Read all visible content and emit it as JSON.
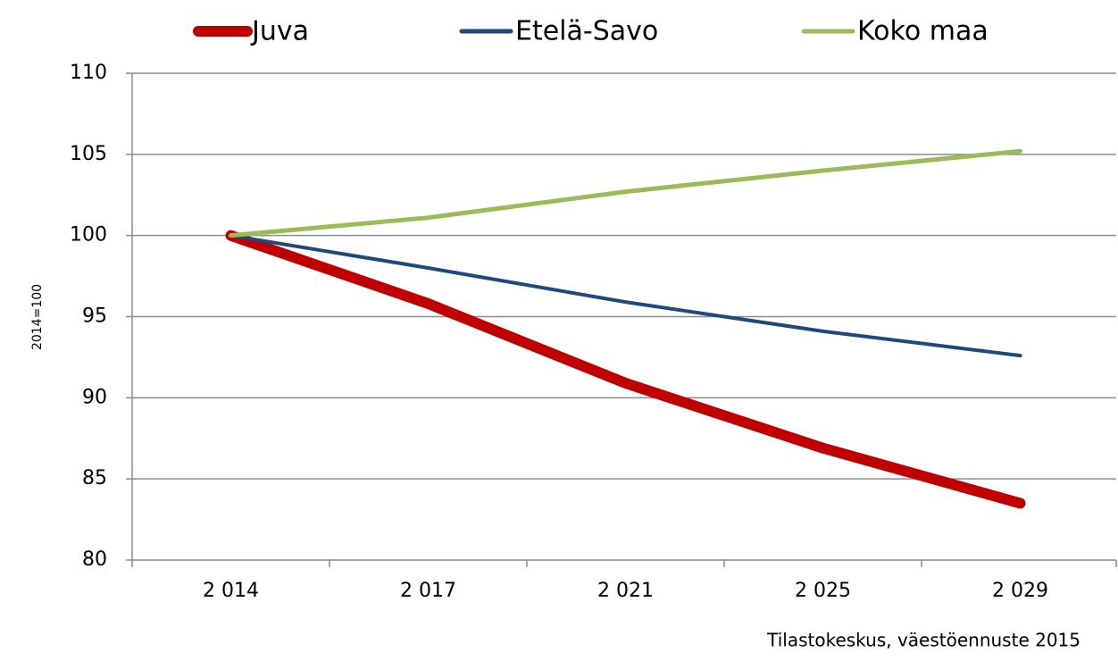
{
  "chart_data": {
    "type": "line",
    "categories": [
      "2 014",
      "2 017",
      "2 021",
      "2 025",
      "2 029"
    ],
    "series": [
      {
        "name": "Juva",
        "color": "#c00000",
        "values": [
          100,
          95.8,
          90.9,
          86.9,
          83.5
        ]
      },
      {
        "name": "Etelä-Savo",
        "color": "#1f497d",
        "values": [
          100,
          98,
          95.9,
          94.1,
          92.6
        ]
      },
      {
        "name": "Koko maa",
        "color": "#9bbb59",
        "values": [
          100,
          101.1,
          102.7,
          104,
          105.2
        ]
      }
    ],
    "ylabel": "2014=100",
    "ylim": [
      80,
      110
    ],
    "yticks": [
      80,
      85,
      90,
      95,
      100,
      105,
      110
    ],
    "grid": true,
    "legend": "top",
    "source": "Tilastokeskus, väestöennuste 2015"
  }
}
